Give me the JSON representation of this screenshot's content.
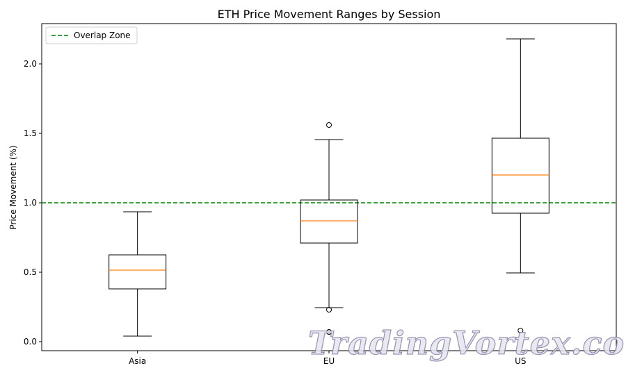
{
  "chart_data": {
    "type": "box",
    "title": "ETH Price Movement Ranges by Session",
    "xlabel": "",
    "ylabel": "Price Movement (%)",
    "ylim": [
      -0.065,
      2.29
    ],
    "yticks": [
      "0.0",
      "0.5",
      "1.0",
      "1.5",
      "2.0"
    ],
    "categories": [
      "Asia",
      "EU",
      "US"
    ],
    "boxes": [
      {
        "category": "Asia",
        "whisker_low": 0.04,
        "q1": 0.38,
        "median": 0.515,
        "q3": 0.625,
        "whisker_high": 0.935,
        "outliers": []
      },
      {
        "category": "EU",
        "whisker_low": 0.245,
        "q1": 0.71,
        "median": 0.87,
        "q3": 1.02,
        "whisker_high": 1.455,
        "outliers": [
          1.56,
          0.23,
          0.07
        ]
      },
      {
        "category": "US",
        "whisker_low": 0.495,
        "q1": 0.925,
        "median": 1.2,
        "q3": 1.465,
        "whisker_high": 2.18,
        "outliers": [
          0.08
        ]
      }
    ],
    "reference_line": {
      "value": 1.0,
      "label": "Overlap Zone",
      "color": "#008000",
      "style": "dashed"
    },
    "legend": {
      "position": "upper-left",
      "entries": [
        "Overlap Zone"
      ]
    },
    "grid": false,
    "colors": {
      "median": "#ff7f0e",
      "box": "#000000",
      "reference": "#008000"
    }
  },
  "watermark": "TradingVortex.com"
}
